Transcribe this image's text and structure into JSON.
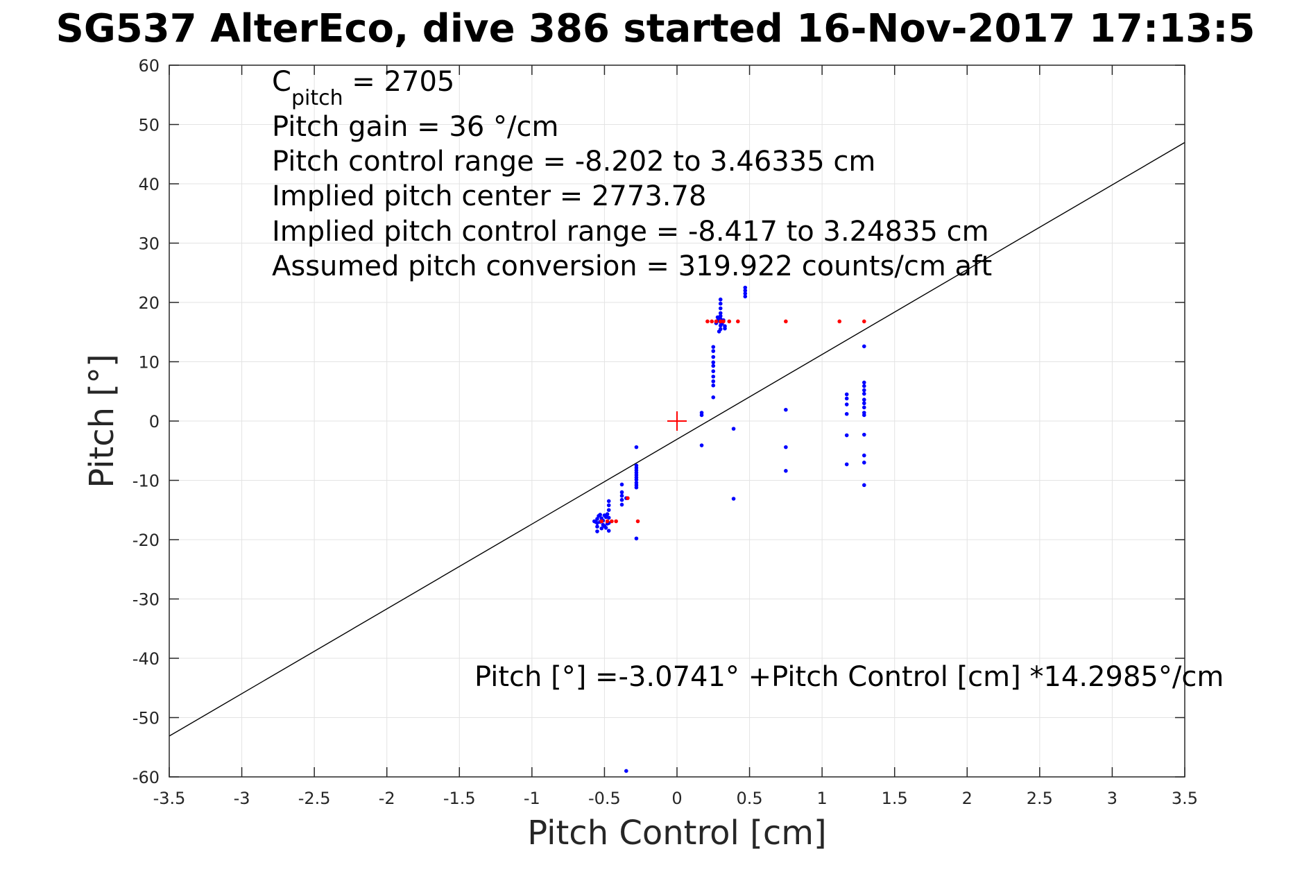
{
  "chart_data": {
    "type": "scatter",
    "title": "SG537 AlterEco, dive 386 started 16-Nov-2017 17:13:5",
    "xlabel": "Pitch Control [cm]",
    "ylabel": "Pitch [°]",
    "xlim": [
      -3.5,
      3.5
    ],
    "ylim": [
      -60,
      60
    ],
    "grid": true,
    "xticks": [
      -3.5,
      -3,
      -2.5,
      -2,
      -1.5,
      -1,
      -0.5,
      0,
      0.5,
      1,
      1.5,
      2,
      2.5,
      3,
      3.5
    ],
    "xtick_labels": [
      "-3.5",
      "-3",
      "-2.5",
      "-2",
      "-1.5",
      "-1",
      "-0.5",
      "0",
      "0.5",
      "1",
      "1.5",
      "2",
      "2.5",
      "3",
      "3.5"
    ],
    "yticks": [
      -60,
      -50,
      -40,
      -30,
      -20,
      -10,
      0,
      10,
      20,
      30,
      40,
      50,
      60
    ],
    "ytick_labels": [
      "-60",
      "-50",
      "-40",
      "-30",
      "-20",
      "-10",
      "0",
      "10",
      "20",
      "30",
      "40",
      "50",
      "60"
    ],
    "colors": {
      "series1": "#0000ff",
      "series2": "#ff0000",
      "fit_line": "#000000",
      "center_marker": "#ff0000",
      "grid": "#e3e3e3",
      "axes": "#262626"
    },
    "annotations": {
      "c_pitch_main": "C",
      "c_pitch_sub": "pitch",
      "c_pitch_value": " = 2705",
      "pitch_gain": "Pitch gain = 36 °/cm",
      "control_range": "Pitch control range = -8.202 to 3.46335 cm",
      "implied_center": "Implied pitch center = 2773.78",
      "implied_range": "Implied pitch control range = -8.417 to 3.24835 cm",
      "conversion": "Assumed pitch conversion = 319.922 counts/cm aft",
      "fit_equation": "Pitch [°] =-3.0741° +Pitch Control [cm] *14.2985°/cm"
    },
    "fit_line": {
      "intercept": -3.0741,
      "slope": 14.2985,
      "x_range": [
        -3.5,
        3.5
      ]
    },
    "center_marker": {
      "x": 0,
      "y": 0,
      "marker": "+"
    },
    "series": [
      {
        "color_key": "series1",
        "marker": "dot",
        "points": [
          [
            -0.55,
            -17.2
          ],
          [
            -0.55,
            -16.5
          ],
          [
            -0.55,
            -17.8
          ],
          [
            -0.55,
            -18.6
          ],
          [
            -0.54,
            -16.0
          ],
          [
            -0.53,
            -17.0
          ],
          [
            -0.53,
            -15.8
          ],
          [
            -0.52,
            -18.1
          ],
          [
            -0.52,
            -16.4
          ],
          [
            -0.51,
            -17.5
          ],
          [
            -0.51,
            -16.8
          ],
          [
            -0.5,
            -15.9
          ],
          [
            -0.5,
            -17.7
          ],
          [
            -0.49,
            -16.2
          ],
          [
            -0.49,
            -18.0
          ],
          [
            -0.48,
            -17.3
          ],
          [
            -0.48,
            -15.7
          ],
          [
            -0.56,
            -17.0
          ],
          [
            -0.57,
            -16.9
          ],
          [
            -0.47,
            -18.5
          ],
          [
            -0.47,
            -17.2
          ],
          [
            -0.47,
            -16.3
          ],
          [
            -0.47,
            -15.0
          ],
          [
            -0.47,
            -14.2
          ],
          [
            -0.47,
            -13.5
          ],
          [
            -0.38,
            -10.7
          ],
          [
            -0.38,
            -12.0
          ],
          [
            -0.38,
            -12.6
          ],
          [
            -0.38,
            -13.3
          ],
          [
            -0.38,
            -14.1
          ],
          [
            -0.28,
            -4.4
          ],
          [
            -0.28,
            -7.5
          ],
          [
            -0.28,
            -7.9
          ],
          [
            -0.28,
            -8.3
          ],
          [
            -0.28,
            -8.7
          ],
          [
            -0.28,
            -9.1
          ],
          [
            -0.28,
            -9.5
          ],
          [
            -0.28,
            -9.9
          ],
          [
            -0.28,
            -10.4
          ],
          [
            -0.28,
            -10.8
          ],
          [
            -0.28,
            -11.2
          ],
          [
            -0.28,
            -19.8
          ],
          [
            -0.35,
            -59.0
          ],
          [
            -0.35,
            -13.0
          ],
          [
            0.17,
            1.4
          ],
          [
            0.17,
            1.0
          ],
          [
            0.17,
            -4.1
          ],
          [
            0.25,
            12.5
          ],
          [
            0.25,
            11.8
          ],
          [
            0.25,
            10.8
          ],
          [
            0.25,
            9.9
          ],
          [
            0.25,
            9.3
          ],
          [
            0.25,
            8.4
          ],
          [
            0.25,
            7.5
          ],
          [
            0.25,
            6.7
          ],
          [
            0.25,
            6.0
          ],
          [
            0.25,
            4.0
          ],
          [
            0.3,
            20.5
          ],
          [
            0.3,
            19.8
          ],
          [
            0.3,
            19.0
          ],
          [
            0.3,
            18.2
          ],
          [
            0.3,
            17.7
          ],
          [
            0.3,
            17.2
          ],
          [
            0.3,
            16.7
          ],
          [
            0.3,
            16.1
          ],
          [
            0.3,
            15.5
          ],
          [
            0.29,
            15.1
          ],
          [
            0.28,
            16.9
          ],
          [
            0.28,
            17.5
          ],
          [
            0.31,
            16.4
          ],
          [
            0.32,
            17.0
          ],
          [
            0.33,
            16.0
          ],
          [
            0.33,
            15.6
          ],
          [
            0.27,
            16.5
          ],
          [
            0.39,
            -1.3
          ],
          [
            0.39,
            -13.1
          ],
          [
            0.47,
            22.5
          ],
          [
            0.47,
            22.0
          ],
          [
            0.47,
            21.5
          ],
          [
            0.47,
            21.0
          ],
          [
            0.75,
            1.9
          ],
          [
            0.75,
            -4.4
          ],
          [
            0.75,
            -8.4
          ],
          [
            1.17,
            4.5
          ],
          [
            1.17,
            3.8
          ],
          [
            1.17,
            2.8
          ],
          [
            1.17,
            1.2
          ],
          [
            1.17,
            -2.4
          ],
          [
            1.17,
            -7.3
          ],
          [
            1.29,
            12.6
          ],
          [
            1.29,
            6.5
          ],
          [
            1.29,
            5.9
          ],
          [
            1.29,
            5.2
          ],
          [
            1.29,
            4.6
          ],
          [
            1.29,
            3.6
          ],
          [
            1.29,
            3.0
          ],
          [
            1.29,
            2.3
          ],
          [
            1.29,
            1.4
          ],
          [
            1.29,
            1.0
          ],
          [
            1.29,
            -2.3
          ],
          [
            1.29,
            -5.8
          ],
          [
            1.29,
            -7.0
          ],
          [
            1.29,
            -10.8
          ]
        ]
      },
      {
        "color_key": "series2",
        "marker": "dot",
        "points": [
          [
            -0.52,
            -16.9
          ],
          [
            -0.48,
            -16.9
          ],
          [
            -0.45,
            -16.9
          ],
          [
            -0.42,
            -16.9
          ],
          [
            -0.34,
            -13.0
          ],
          [
            -0.27,
            -16.9
          ],
          [
            0.21,
            16.8
          ],
          [
            0.24,
            16.8
          ],
          [
            0.27,
            16.8
          ],
          [
            0.3,
            16.8
          ],
          [
            0.32,
            16.8
          ],
          [
            0.36,
            16.8
          ],
          [
            0.42,
            16.8
          ],
          [
            0.75,
            16.8
          ],
          [
            1.12,
            16.8
          ],
          [
            1.29,
            16.8
          ]
        ]
      }
    ]
  }
}
